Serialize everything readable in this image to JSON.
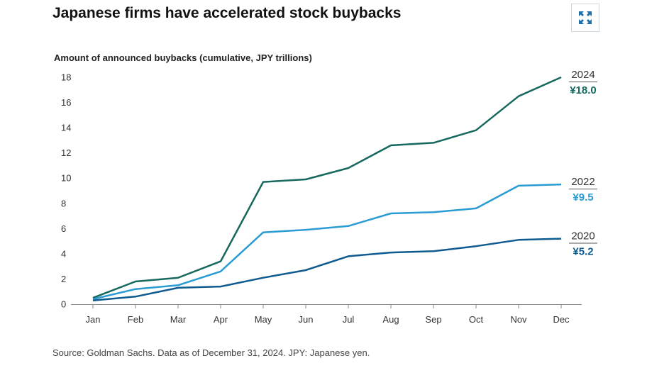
{
  "header": {
    "title": "Japanese firms have accelerated stock buybacks",
    "expand_icon": "expand-arrows-icon"
  },
  "footer": {
    "source": "Source: Goldman Sachs. Data as of December 31, 2024. JPY: Japanese yen."
  },
  "chart_data": {
    "type": "line",
    "title": "Japanese firms have accelerated stock buybacks",
    "ylabel": "Amount of announced buybacks (cumulative, JPY trillions)",
    "xlabel": "",
    "categories": [
      "Jan",
      "Feb",
      "Mar",
      "Apr",
      "May",
      "Jun",
      "Jul",
      "Aug",
      "Sep",
      "Oct",
      "Nov",
      "Dec"
    ],
    "ylim": [
      0,
      18
    ],
    "yticks": [
      0,
      2,
      4,
      6,
      8,
      10,
      12,
      14,
      16,
      18
    ],
    "grid": false,
    "series": [
      {
        "name": "2024",
        "end_label": "¥18.0",
        "color": "#17695e",
        "values": [
          0.5,
          1.8,
          2.1,
          3.4,
          9.7,
          9.9,
          10.8,
          12.6,
          12.8,
          13.8,
          16.5,
          18.0
        ]
      },
      {
        "name": "2022",
        "end_label": "¥9.5",
        "color": "#2a9bd3",
        "values": [
          0.4,
          1.2,
          1.5,
          2.6,
          5.7,
          5.9,
          6.2,
          7.2,
          7.3,
          7.6,
          9.4,
          9.5
        ]
      },
      {
        "name": "2020",
        "end_label": "¥5.2",
        "color": "#0f5a8e",
        "values": [
          0.3,
          0.6,
          1.3,
          1.4,
          2.1,
          2.7,
          3.8,
          4.1,
          4.2,
          4.6,
          5.1,
          5.2
        ]
      }
    ]
  }
}
